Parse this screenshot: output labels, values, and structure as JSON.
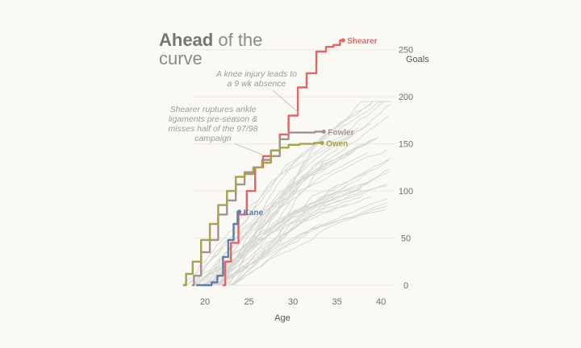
{
  "title": {
    "strong": "Ahead",
    "rest1": " of the",
    "line2": "curve"
  },
  "annotations": [
    {
      "id": "knee",
      "lines": [
        "A knee injury leads to",
        "a 9 wk absence"
      ]
    },
    {
      "id": "ankle",
      "lines": [
        "Shearer ruptures ankle",
        "ligaments pre-season &",
        "misses half of the 97/98",
        "campaign"
      ]
    }
  ],
  "chart_data": {
    "type": "line",
    "xlabel": "Age",
    "ylabel": "Goals",
    "xlim": [
      15.5,
      41
    ],
    "ylim": [
      0,
      260
    ],
    "xticks": [
      20,
      25,
      30,
      35,
      40
    ],
    "yticks": [
      0,
      50,
      100,
      150,
      200,
      250
    ],
    "grid": "horizontal",
    "highlighted": [
      {
        "name": "Shearer",
        "color": "#e0666a",
        "points": [
          [
            22,
            0
          ],
          [
            22.6,
            25
          ],
          [
            23.3,
            45
          ],
          [
            24.3,
            75
          ],
          [
            25.2,
            100
          ],
          [
            26.2,
            125
          ],
          [
            27,
            137
          ],
          [
            28,
            143
          ],
          [
            29,
            160
          ],
          [
            30,
            180
          ],
          [
            31.1,
            210
          ],
          [
            32,
            225
          ],
          [
            33.3,
            248
          ],
          [
            34.2,
            253
          ],
          [
            35,
            255
          ],
          [
            35.7,
            260
          ]
        ]
      },
      {
        "name": "Fowler",
        "color": "#a88f8f",
        "points": [
          [
            18.5,
            0
          ],
          [
            19,
            10
          ],
          [
            20.1,
            35
          ],
          [
            21,
            48
          ],
          [
            22,
            75
          ],
          [
            23,
            90
          ],
          [
            24,
            107
          ],
          [
            25,
            120
          ],
          [
            26,
            125
          ],
          [
            27,
            133
          ],
          [
            28,
            137
          ],
          [
            29,
            155
          ],
          [
            30,
            162
          ],
          [
            31.5,
            162
          ],
          [
            33.5,
            163
          ]
        ]
      },
      {
        "name": "Owen",
        "color": "#a8a150",
        "points": [
          [
            17.5,
            0
          ],
          [
            18.2,
            12
          ],
          [
            19,
            25
          ],
          [
            20.1,
            48
          ],
          [
            21,
            65
          ],
          [
            22,
            85
          ],
          [
            23,
            100
          ],
          [
            24,
            115
          ],
          [
            25,
            118
          ],
          [
            26,
            125
          ],
          [
            27,
            130
          ],
          [
            28,
            143
          ],
          [
            29,
            146
          ],
          [
            30,
            149
          ],
          [
            31.5,
            150
          ],
          [
            33.3,
            151
          ]
        ]
      },
      {
        "name": "Kane",
        "color": "#5b7fa6",
        "points": [
          [
            19,
            0
          ],
          [
            20.5,
            0
          ],
          [
            21,
            3
          ],
          [
            21.8,
            10
          ],
          [
            22.3,
            30
          ],
          [
            23,
            48
          ],
          [
            23.5,
            65
          ],
          [
            23.9,
            78
          ]
        ]
      }
    ]
  }
}
